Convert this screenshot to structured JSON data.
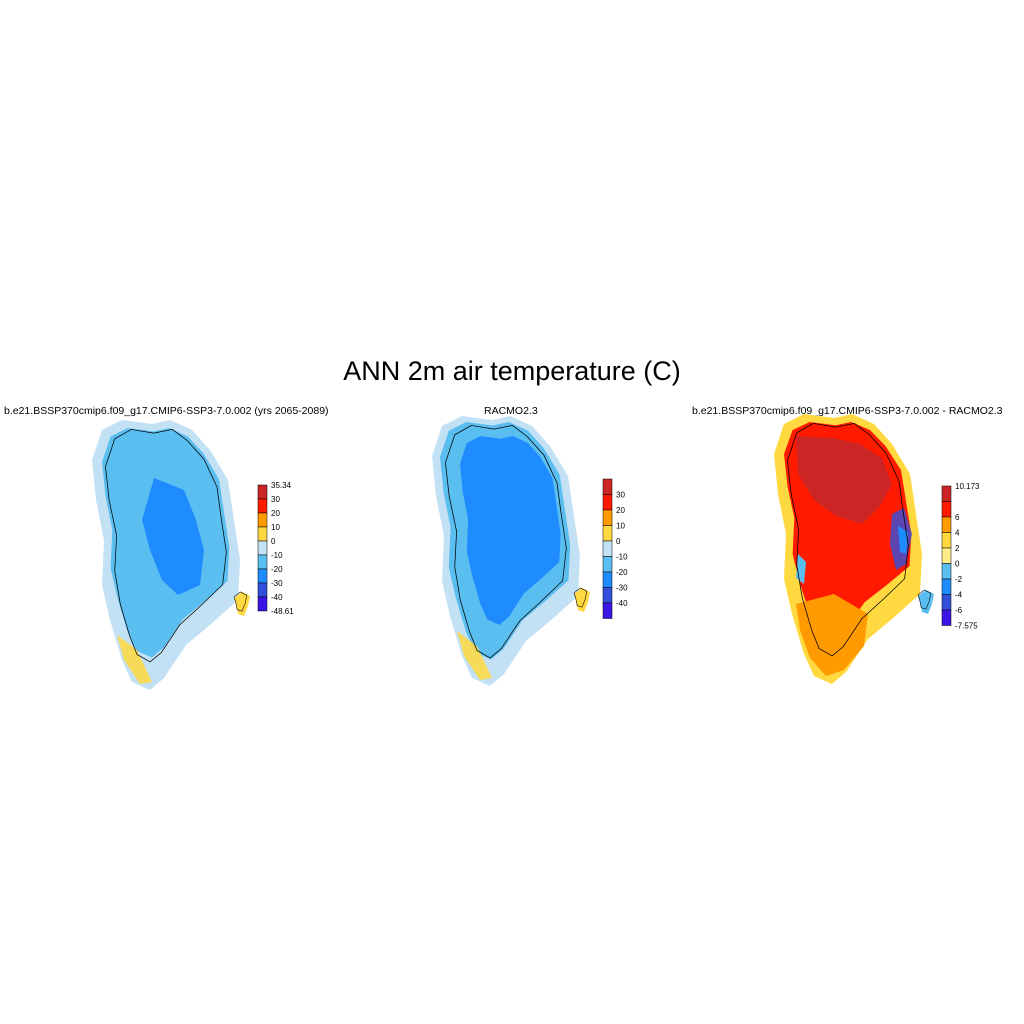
{
  "title": "ANN 2m air temperature (C)",
  "panels": [
    {
      "id": "model",
      "title": "b.e21.BSSP370cmip6.f09_g17.CMIP6-SSP3-7.0.002 (yrs 2065-2089)",
      "colorbar": {
        "colors": [
          "#3b14e6",
          "#3250dc",
          "#1e8cff",
          "#5abef0",
          "#c3e1f5",
          "#ffd93f",
          "#ff9a00",
          "#ff1a00",
          "#cc2525"
        ],
        "labels": [
          "-48.61",
          "-40",
          "-30",
          "-20",
          "-10",
          "0",
          "10",
          "20",
          "30",
          "35.34"
        ]
      }
    },
    {
      "id": "obs",
      "title": "RACMO2.3",
      "colorbar": {
        "colors": [
          "#3b14e6",
          "#3250dc",
          "#1e8cff",
          "#5abef0",
          "#c3e1f5",
          "#ffd93f",
          "#ff9a00",
          "#ff1a00",
          "#cc2525"
        ],
        "labels": [
          "",
          "-40",
          "-30",
          "-20",
          "-10",
          "0",
          "10",
          "20",
          "30",
          ""
        ]
      }
    },
    {
      "id": "diff",
      "title": "b.e21.BSSP370cmip6.f09_g17.CMIP6-SSP3-7.0.002 - RACMO2.3",
      "colorbar": {
        "colors": [
          "#3b14e6",
          "#3250dc",
          "#1e8cff",
          "#5abef0",
          "#ffee88",
          "#ffd93f",
          "#ff9a00",
          "#ff1a00",
          "#cc2525"
        ],
        "labels": [
          "-7.575",
          "-6",
          "-4",
          "-2",
          "0",
          "2",
          "4",
          "6",
          "",
          "10.173"
        ]
      }
    }
  ]
}
